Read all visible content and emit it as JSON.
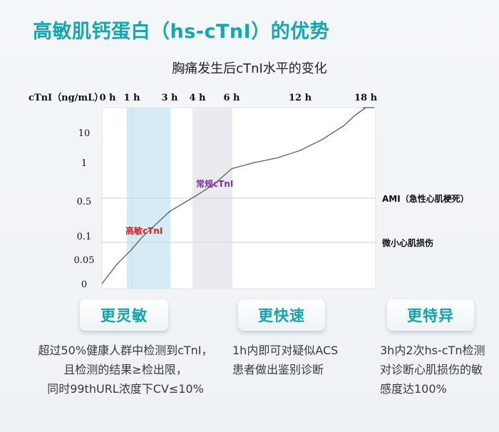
{
  "page_title": "高敏肌钙蛋白（hs-cTnI）的优势",
  "chart_data": {
    "type": "line",
    "title": "胸痛发生后cTnI水平的变化",
    "ylabel": "cTnI（ng/mL）",
    "x_ticks": [
      "0 h",
      "1 h",
      "3 h",
      "4 h",
      "6 h",
      "12 h",
      "18 h"
    ],
    "x_tick_hours": [
      0,
      1,
      3,
      4,
      6,
      12,
      18
    ],
    "y_ticks": [
      "0",
      "0.05",
      "0.1",
      "0.5",
      "1",
      "10"
    ],
    "series": [
      {
        "x": [
          0,
          0.5,
          1,
          1.5,
          2,
          3,
          4,
          5,
          6,
          8,
          10,
          12,
          14,
          16,
          17,
          18
        ],
        "y": [
          0,
          0.04,
          0.08,
          0.14,
          0.22,
          0.38,
          0.55,
          0.72,
          0.95,
          1.6,
          2.6,
          4.2,
          6.5,
          9.5,
          11.5,
          13
        ]
      }
    ],
    "reference_lines": [
      {
        "label": "AMI（急性心肌梗死）",
        "value": 0.5
      },
      {
        "label": "微小心肌损伤",
        "value": 0.1
      }
    ],
    "shaded_ranges": [
      {
        "from": 1,
        "to": 3,
        "color": "#d5ecf6"
      },
      {
        "from": 4,
        "to": 6,
        "color": "#e9ebee"
      }
    ],
    "annotations": [
      {
        "text": "高敏cTnI",
        "color": "#e0201d"
      },
      {
        "text": "常规cTnI",
        "color": "#7d2ea8"
      }
    ]
  },
  "advantages": [
    {
      "label": "更灵敏",
      "lines": [
        "超过50%健康人群中检测到cTnI，",
        "且检测的结果≥检出限，",
        "同时99thURL浓度下CV≤10%"
      ]
    },
    {
      "label": "更快速",
      "lines": [
        "1h内即可对疑似ACS",
        "患者做出鉴别诊断"
      ]
    },
    {
      "label": "更特异",
      "lines": [
        "3h内2次hs-cTn检测",
        "对诊断心肌损伤的敏",
        "感度达100%"
      ]
    }
  ],
  "colors": {
    "accent": "#16a6ad",
    "curve": "#666666",
    "grid": "#d8d8d8"
  }
}
